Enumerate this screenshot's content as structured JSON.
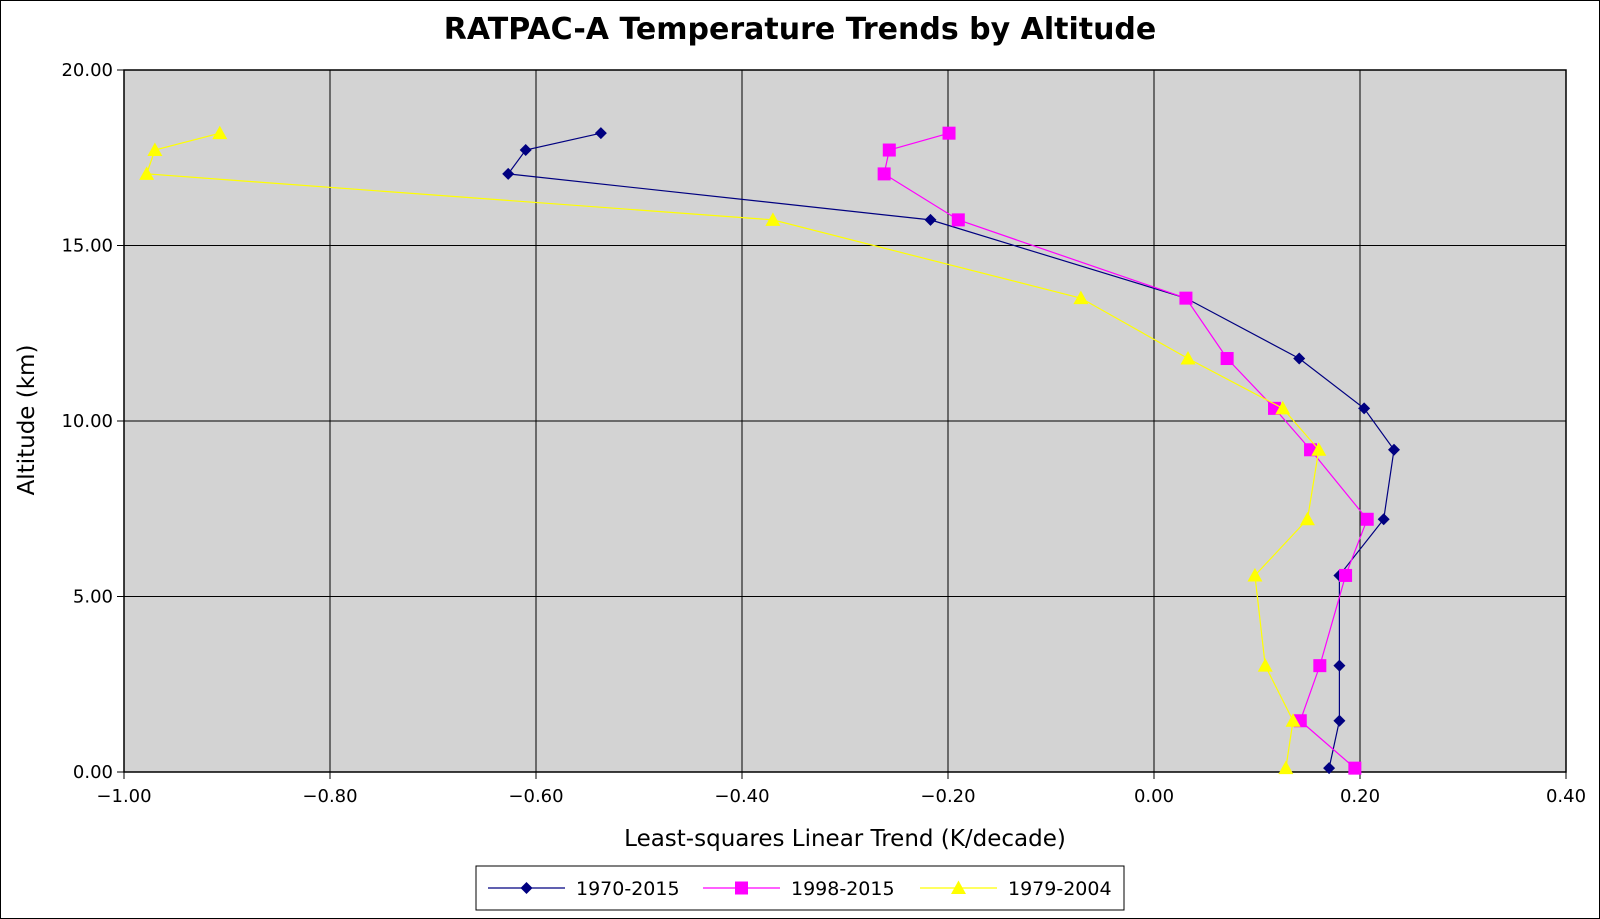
{
  "chart_data": {
    "type": "line",
    "title": "RATPAC-A Temperature Trends by Altitude",
    "xlabel": "Least-squares Linear Trend (K/decade)",
    "ylabel": "Altitude (km)",
    "xlim": [
      -1.0,
      0.4
    ],
    "ylim": [
      0.0,
      20.0
    ],
    "x_ticks": [
      "−1.00",
      "−0.80",
      "−0.60",
      "−0.40",
      "−0.20",
      "0.00",
      "0.20",
      "0.40"
    ],
    "x_tick_values": [
      -1.0,
      -0.8,
      -0.6,
      -0.4,
      -0.2,
      0.0,
      0.2,
      0.4
    ],
    "y_ticks": [
      "0.00",
      "5.00",
      "10.00",
      "15.00",
      "20.00"
    ],
    "y_tick_values": [
      0,
      5,
      10,
      15,
      20
    ],
    "grid": true,
    "plot_background": "#d3d3d3",
    "legend_position": "bottom",
    "series": [
      {
        "name": "1970-2015",
        "color": "#000080",
        "marker": "diamond",
        "points": [
          {
            "x": 0.17,
            "y": 0.11
          },
          {
            "x": 0.18,
            "y": 1.46
          },
          {
            "x": 0.18,
            "y": 3.03
          },
          {
            "x": 0.18,
            "y": 5.6
          },
          {
            "x": 0.223,
            "y": 7.2
          },
          {
            "x": 0.233,
            "y": 9.18
          },
          {
            "x": 0.204,
            "y": 10.36
          },
          {
            "x": 0.141,
            "y": 11.78
          },
          {
            "x": 0.031,
            "y": 13.5
          },
          {
            "x": -0.217,
            "y": 15.73
          },
          {
            "x": -0.627,
            "y": 17.04
          },
          {
            "x": -0.61,
            "y": 17.72
          },
          {
            "x": -0.537,
            "y": 18.2
          }
        ]
      },
      {
        "name": "1998-2015",
        "color": "#ff00ff",
        "marker": "square",
        "points": [
          {
            "x": 0.195,
            "y": 0.11
          },
          {
            "x": 0.142,
            "y": 1.46
          },
          {
            "x": 0.161,
            "y": 3.03
          },
          {
            "x": 0.186,
            "y": 5.6
          },
          {
            "x": 0.207,
            "y": 7.2
          },
          {
            "x": 0.152,
            "y": 9.18
          },
          {
            "x": 0.117,
            "y": 10.36
          },
          {
            "x": 0.071,
            "y": 11.78
          },
          {
            "x": 0.031,
            "y": 13.5
          },
          {
            "x": -0.19,
            "y": 15.73
          },
          {
            "x": -0.262,
            "y": 17.04
          },
          {
            "x": -0.257,
            "y": 17.72
          },
          {
            "x": -0.199,
            "y": 18.2
          }
        ]
      },
      {
        "name": "1979-2004",
        "color": "#ffff00",
        "marker": "triangle",
        "points": [
          {
            "x": 0.128,
            "y": 0.11
          },
          {
            "x": 0.135,
            "y": 1.46
          },
          {
            "x": 0.108,
            "y": 3.03
          },
          {
            "x": 0.098,
            "y": 5.6
          },
          {
            "x": 0.149,
            "y": 7.2
          },
          {
            "x": 0.16,
            "y": 9.18
          },
          {
            "x": 0.125,
            "y": 10.36
          },
          {
            "x": 0.033,
            "y": 11.78
          },
          {
            "x": -0.071,
            "y": 13.5
          },
          {
            "x": -0.37,
            "y": 15.73
          },
          {
            "x": -0.978,
            "y": 17.04
          },
          {
            "x": -0.97,
            "y": 17.72
          },
          {
            "x": -0.907,
            "y": 18.2
          }
        ]
      }
    ]
  }
}
